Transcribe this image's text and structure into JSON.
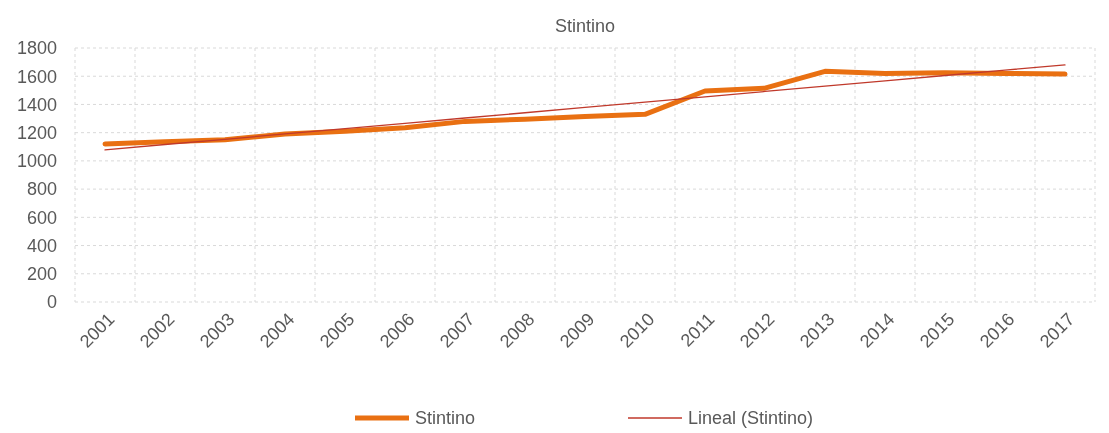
{
  "chart_data": {
    "type": "line",
    "title": "Stintino",
    "categories": [
      "2001",
      "2002",
      "2003",
      "2004",
      "2005",
      "2006",
      "2007",
      "2008",
      "2009",
      "2010",
      "2011",
      "2012",
      "2013",
      "2014",
      "2015",
      "2016",
      "2017"
    ],
    "series": [
      {
        "name": "Stintino",
        "color": "#e97012",
        "values": [
          1120,
          1135,
          1150,
          1190,
          1210,
          1235,
          1280,
          1295,
          1315,
          1330,
          1495,
          1515,
          1635,
          1620,
          1625,
          1620,
          1615
        ]
      },
      {
        "name": "Lineal (Stintino)",
        "type": "line",
        "color": "#c0392b",
        "values": [
          1078,
          1116,
          1153,
          1191,
          1229,
          1266,
          1304,
          1341,
          1379,
          1417,
          1454,
          1492,
          1530,
          1567,
          1605,
          1643,
          1680
        ]
      }
    ],
    "ylim": [
      0,
      1800
    ],
    "yticks": [
      0,
      200,
      400,
      600,
      800,
      1000,
      1200,
      1400,
      1600,
      1800
    ],
    "grid": true,
    "legend": "bottom"
  }
}
